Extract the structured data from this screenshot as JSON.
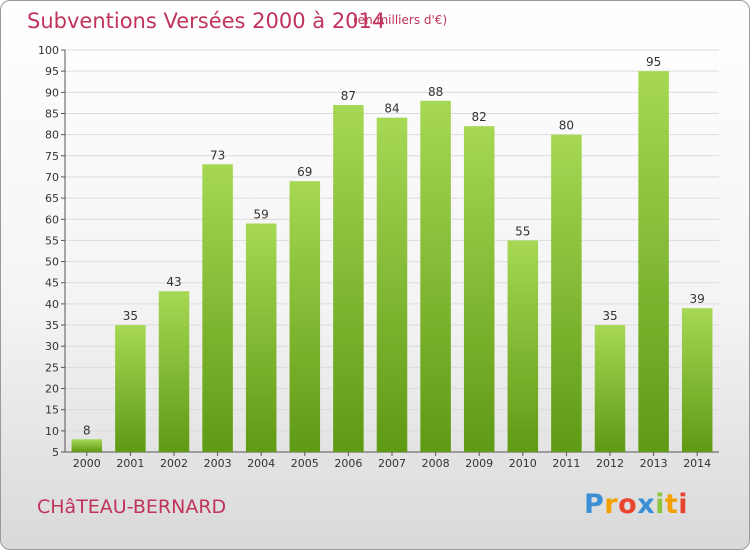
{
  "title": "Subventions Versées 2000 à 2014",
  "subtitle": "(en milliers d'€)",
  "commune": "CHâTEAU-BERNARD",
  "logo": {
    "letters": [
      "P",
      "r",
      "o",
      "x",
      "i",
      "t",
      "i"
    ],
    "colors": [
      "#3a8fd6",
      "#f2a100",
      "#e8452e",
      "#3a8fd6",
      "#8cc63f",
      "#f2a100",
      "#e8452e"
    ]
  },
  "colors": {
    "title": "#c0335b",
    "bar_light": "#a6d854",
    "bar_dark": "#5f9a14"
  },
  "chart_data": {
    "type": "bar",
    "title": "Subventions Versées 2000 à 2014",
    "subtitle": "(en milliers d'€)",
    "categories": [
      "2000",
      "2001",
      "2002",
      "2003",
      "2004",
      "2005",
      "2006",
      "2007",
      "2008",
      "2009",
      "2010",
      "2011",
      "2012",
      "2013",
      "2014"
    ],
    "values": [
      8,
      35,
      43,
      73,
      59,
      69,
      87,
      84,
      88,
      82,
      55,
      80,
      35,
      95,
      39
    ],
    "ylim": [
      5,
      100
    ],
    "yticks": [
      5,
      10,
      15,
      20,
      25,
      30,
      35,
      40,
      45,
      50,
      55,
      60,
      65,
      70,
      75,
      80,
      85,
      90,
      95,
      100
    ],
    "grid": true,
    "xlabel": "",
    "ylabel": ""
  }
}
